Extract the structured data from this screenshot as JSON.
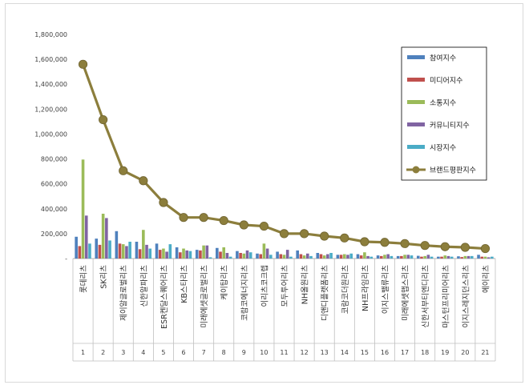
{
  "chart_data": {
    "type": "bar",
    "categories": [
      "롯데리츠",
      "SK리츠",
      "제이알글로벌리츠",
      "신한알파리츠",
      "ESR켄달스퀘어리츠",
      "KB스타리츠",
      "미래에셋글로벌리츠",
      "케이탑리츠",
      "코람코에너지리츠",
      "이리츠코크렙",
      "모두투어리츠",
      "NH올원리츠",
      "디앤디플랫폼리츠",
      "코람코더원리츠",
      "NH프라임리츠",
      "이지스밸류리츠",
      "미래에셋맵스리츠",
      "신한서부티엔디리츠",
      "마스턴프리미어리츠",
      "이지스레지던스리츠",
      "에이리츠"
    ],
    "rank_labels": [
      "1",
      "2",
      "3",
      "4",
      "5",
      "6",
      "7",
      "8",
      "9",
      "10",
      "11",
      "12",
      "13",
      "14",
      "15",
      "16",
      "17",
      "18",
      "19",
      "20",
      "21"
    ],
    "series": [
      {
        "name": "참여지수",
        "color": "#4f81bd",
        "values": [
          175000,
          160000,
          220000,
          135000,
          120000,
          90000,
          70000,
          85000,
          60000,
          40000,
          55000,
          65000,
          45000,
          30000,
          35000,
          25000,
          20000,
          22000,
          15000,
          18000,
          30000
        ]
      },
      {
        "name": "미디어지수",
        "color": "#c0504d",
        "values": [
          100000,
          110000,
          120000,
          75000,
          70000,
          50000,
          65000,
          55000,
          45000,
          35000,
          35000,
          35000,
          35000,
          30000,
          25000,
          20000,
          20000,
          15000,
          15000,
          12000,
          15000
        ]
      },
      {
        "name": "소통지수",
        "color": "#9bbb59",
        "values": [
          795000,
          360000,
          115000,
          230000,
          80000,
          80000,
          105000,
          90000,
          40000,
          120000,
          30000,
          25000,
          25000,
          35000,
          50000,
          30000,
          30000,
          20000,
          25000,
          20000,
          15000
        ]
      },
      {
        "name": "커뮤니티지수",
        "color": "#8064a2",
        "values": [
          345000,
          325000,
          100000,
          110000,
          55000,
          65000,
          105000,
          45000,
          65000,
          80000,
          70000,
          40000,
          35000,
          30000,
          20000,
          35000,
          30000,
          30000,
          20000,
          20000,
          10000
        ]
      },
      {
        "name": "시장지수",
        "color": "#4bacc6",
        "values": [
          120000,
          145000,
          135000,
          80000,
          115000,
          60000,
          10000,
          15000,
          50000,
          30000,
          15000,
          20000,
          45000,
          40000,
          15000,
          20000,
          25000,
          15000,
          15000,
          20000,
          15000
        ]
      },
      {
        "name": "브랜드평판지수",
        "color": "#8c7e3c",
        "type": "line",
        "values": [
          1560000,
          1115000,
          705000,
          625000,
          450000,
          330000,
          330000,
          305000,
          270000,
          260000,
          200000,
          200000,
          180000,
          165000,
          135000,
          130000,
          120000,
          105000,
          95000,
          90000,
          80000
        ]
      }
    ],
    "ylim": [
      0,
      1800000
    ],
    "yticks": [
      "-",
      "200,000",
      "400,000",
      "600,000",
      "800,000",
      "1,000,000",
      "1,200,000",
      "1,400,000",
      "1,600,000",
      "1,800,000"
    ],
    "grid": false,
    "legend_position": "right"
  }
}
